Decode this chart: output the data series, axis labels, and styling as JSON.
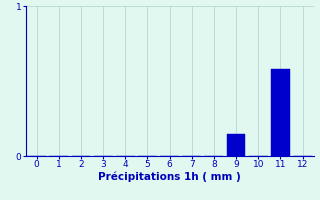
{
  "x_values": [
    0,
    1,
    2,
    3,
    4,
    5,
    6,
    7,
    8,
    9,
    10,
    11,
    12
  ],
  "bar_values": [
    0,
    0,
    0,
    0,
    0,
    0,
    0,
    0,
    0,
    0.15,
    0,
    0.58,
    0
  ],
  "bar_color": "#0000cc",
  "bar_edge_color": "#0000cc",
  "xlabel": "Précipitations 1h ( mm )",
  "ylim": [
    0,
    1.0
  ],
  "xlim": [
    -0.5,
    12.5
  ],
  "yticks": [
    0,
    1
  ],
  "xticks": [
    0,
    1,
    2,
    3,
    4,
    5,
    6,
    7,
    8,
    9,
    10,
    11,
    12
  ],
  "bg_color": "#e0f8f0",
  "grid_color": "#b0d0cc",
  "axis_color": "#0000bb",
  "tick_color": "#0000bb",
  "label_color": "#0000bb",
  "xlabel_fontsize": 7.5,
  "tick_fontsize": 6.5,
  "bar_width": 0.85
}
